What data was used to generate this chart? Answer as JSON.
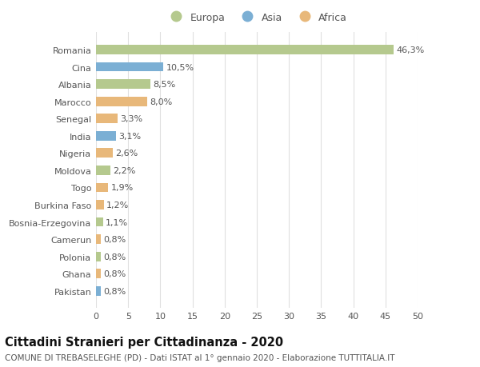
{
  "countries": [
    "Romania",
    "Cina",
    "Albania",
    "Marocco",
    "Senegal",
    "India",
    "Nigeria",
    "Moldova",
    "Togo",
    "Burkina Faso",
    "Bosnia-Erzegovina",
    "Camerun",
    "Polonia",
    "Ghana",
    "Pakistan"
  ],
  "values": [
    46.3,
    10.5,
    8.5,
    8.0,
    3.3,
    3.1,
    2.6,
    2.2,
    1.9,
    1.2,
    1.1,
    0.8,
    0.8,
    0.8,
    0.8
  ],
  "labels": [
    "46,3%",
    "10,5%",
    "8,5%",
    "8,0%",
    "3,3%",
    "3,1%",
    "2,6%",
    "2,2%",
    "1,9%",
    "1,2%",
    "1,1%",
    "0,8%",
    "0,8%",
    "0,8%",
    "0,8%"
  ],
  "continents": [
    "Europa",
    "Asia",
    "Europa",
    "Africa",
    "Africa",
    "Asia",
    "Africa",
    "Europa",
    "Africa",
    "Africa",
    "Europa",
    "Africa",
    "Europa",
    "Africa",
    "Asia"
  ],
  "colors": {
    "Europa": "#b5c98e",
    "Asia": "#7bafd4",
    "Africa": "#e8b87a"
  },
  "legend_order": [
    "Europa",
    "Asia",
    "Africa"
  ],
  "title": "Cittadini Stranieri per Cittadinanza - 2020",
  "subtitle": "COMUNE DI TREBASELEGHE (PD) - Dati ISTAT al 1° gennaio 2020 - Elaborazione TUTTITALIA.IT",
  "xlim": [
    0,
    50
  ],
  "xticks": [
    0,
    5,
    10,
    15,
    20,
    25,
    30,
    35,
    40,
    45,
    50
  ],
  "bg_color": "#ffffff",
  "grid_color": "#e0e0e0",
  "bar_height": 0.55,
  "label_fontsize": 8,
  "tick_label_fontsize": 8,
  "title_fontsize": 10.5,
  "subtitle_fontsize": 7.5,
  "legend_fontsize": 9
}
